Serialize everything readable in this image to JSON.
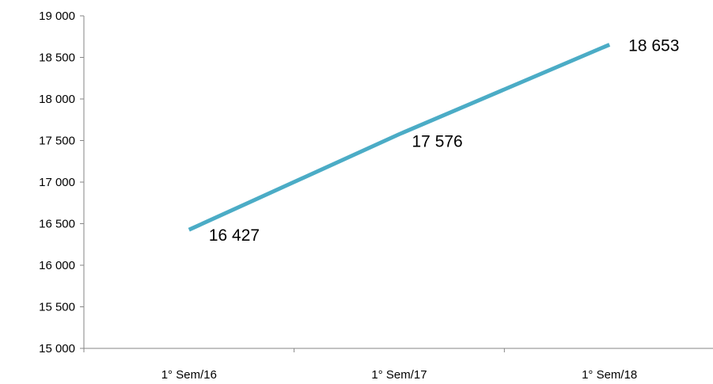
{
  "chart_data": {
    "type": "line",
    "categories": [
      "1° Sem/16",
      "1° Sem/17",
      "1° Sem/18"
    ],
    "series": [
      {
        "values": [
          16427,
          17576,
          18653
        ]
      }
    ],
    "data_labels": [
      "16 427",
      "17 576",
      "18 653"
    ],
    "y_ticks": [
      15000,
      15500,
      16000,
      16500,
      17000,
      17500,
      18000,
      18500,
      19000
    ],
    "y_tick_labels": [
      "15 000",
      "15 500",
      "16 000",
      "16 500",
      "17 000",
      "17 500",
      "18 000",
      "18 500",
      "19 000"
    ],
    "ylim": [
      15000,
      19000
    ],
    "grid": false,
    "legend": "none",
    "line_color": "#4BACC6",
    "axis_color": "#868686"
  }
}
